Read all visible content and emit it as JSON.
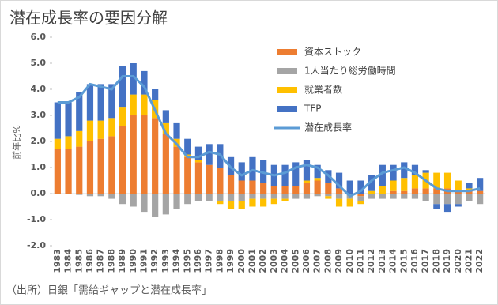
{
  "chart_data": {
    "type": "stacked_bar_line",
    "title": "潜在成長率の要因分解",
    "y_label": "前年比%",
    "source": "（出所）日銀「需給ギャップと潜在成長率」",
    "categories": [
      "1983",
      "1984",
      "1985",
      "1986",
      "1987",
      "1988",
      "1989",
      "1990",
      "1991",
      "1992",
      "1993",
      "1994",
      "1995",
      "1996",
      "1997",
      "1998",
      "1999",
      "2000",
      "2001",
      "2002",
      "2003",
      "2004",
      "2005",
      "2006",
      "2007",
      "2008",
      "2009",
      "2010",
      "2011",
      "2012",
      "2013",
      "2014",
      "2015",
      "2016",
      "2017",
      "2018",
      "2019",
      "2020",
      "2021",
      "2022"
    ],
    "series": [
      {
        "name": "資本ストック",
        "color": "#ed7d31",
        "kind": "bar",
        "values": [
          1.7,
          1.7,
          1.8,
          2.0,
          2.1,
          2.2,
          2.6,
          3.0,
          3.0,
          2.9,
          2.3,
          1.8,
          1.4,
          1.2,
          1.1,
          1.0,
          0.7,
          0.5,
          0.5,
          0.4,
          0.3,
          0.3,
          0.3,
          0.4,
          0.5,
          0.4,
          0.2,
          0.0,
          -0.1,
          0.0,
          0.0,
          0.1,
          0.1,
          0.2,
          0.2,
          0.2,
          0.2,
          0.1,
          0.1,
          0.1
        ]
      },
      {
        "name": "1人当たり総労働時間",
        "color": "#a5a5a5",
        "kind": "bar",
        "values": [
          0,
          0,
          -0.05,
          -0.1,
          -0.1,
          -0.2,
          -0.4,
          -0.5,
          -0.7,
          -0.9,
          -0.8,
          -0.6,
          -0.4,
          -0.3,
          -0.3,
          -0.3,
          -0.3,
          -0.3,
          -0.2,
          -0.2,
          -0.2,
          -0.2,
          -0.2,
          -0.2,
          -0.1,
          -0.1,
          -0.2,
          -0.2,
          -0.2,
          -0.2,
          -0.2,
          -0.2,
          -0.2,
          -0.2,
          -0.3,
          -0.4,
          -0.4,
          -0.4,
          -0.3,
          -0.4
        ]
      },
      {
        "name": "就業者数",
        "color": "#ffc000",
        "kind": "bar",
        "values": [
          0.4,
          0.5,
          0.6,
          0.8,
          0.7,
          0.7,
          0.7,
          0.8,
          0.8,
          0.7,
          0.4,
          0.3,
          0.1,
          0.1,
          0.0,
          -0.1,
          -0.3,
          -0.3,
          -0.3,
          -0.3,
          -0.2,
          -0.1,
          0.0,
          0.1,
          0.1,
          -0.1,
          -0.3,
          -0.3,
          -0.1,
          0.1,
          0.3,
          0.4,
          0.5,
          0.5,
          0.6,
          0.6,
          0.6,
          0.4,
          0.1,
          0.0
        ]
      },
      {
        "name": "TFP",
        "color": "#4472c4",
        "kind": "bar",
        "values": [
          1.4,
          1.3,
          1.5,
          1.4,
          1.4,
          1.3,
          1.6,
          1.2,
          0.9,
          0.4,
          0.5,
          0.6,
          0.6,
          0.5,
          0.8,
          0.9,
          0.7,
          0.7,
          0.9,
          0.9,
          0.8,
          0.8,
          0.9,
          0.8,
          0.5,
          0.5,
          0.6,
          0.5,
          0.5,
          0.6,
          0.8,
          0.6,
          0.6,
          0.4,
          0.1,
          -0.2,
          -0.3,
          -0.1,
          0.2,
          0.5
        ]
      },
      {
        "name": "潜在成長率",
        "color": "#5b9bd5",
        "kind": "line",
        "values": [
          3.5,
          3.5,
          3.7,
          4.2,
          4.1,
          4.0,
          4.5,
          4.5,
          4.1,
          3.2,
          2.3,
          1.9,
          1.4,
          1.4,
          1.6,
          1.5,
          1.0,
          0.7,
          0.9,
          0.8,
          0.7,
          0.8,
          1.0,
          1.1,
          1.0,
          0.7,
          0.3,
          -0.1,
          0.1,
          0.5,
          0.8,
          0.9,
          1.0,
          0.8,
          0.5,
          0.2,
          0.1,
          0.1,
          0.1,
          0.2
        ]
      }
    ],
    "ylim": [
      -2,
      6
    ],
    "yticks": [
      {
        "value": -2,
        "label": "-2.0"
      },
      {
        "value": -1,
        "label": "-1.0"
      },
      {
        "value": 0,
        "label": "0.0"
      },
      {
        "value": 1,
        "label": "1.0"
      },
      {
        "value": 2,
        "label": "2.0"
      },
      {
        "value": 3,
        "label": "3.0"
      },
      {
        "value": 4,
        "label": "4.0"
      },
      {
        "value": 5,
        "label": "5.0"
      },
      {
        "value": 6,
        "label": "6.0"
      }
    ]
  }
}
